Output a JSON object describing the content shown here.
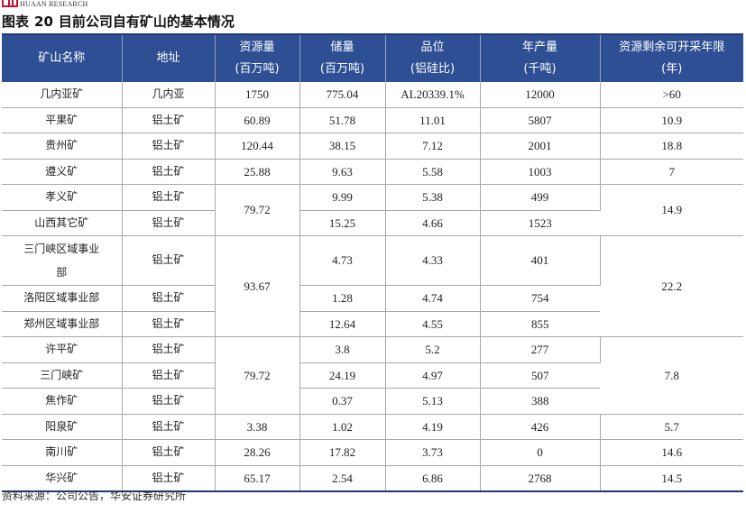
{
  "header": {
    "brand": "HUAAN RESEARCH",
    "figure_label": "图表",
    "figure_number": "20",
    "figure_title": "目前公司自有矿山的基本情况"
  },
  "table": {
    "columns": [
      {
        "line1": "矿山名称",
        "line2": ""
      },
      {
        "line1": "地址",
        "line2": ""
      },
      {
        "line1": "资源量",
        "line2": "(百万吨)"
      },
      {
        "line1": "储量",
        "line2": "(百万吨)"
      },
      {
        "line1": "品位",
        "line2": "(铝硅比)"
      },
      {
        "line1": "年产量",
        "line2": "(千吨)"
      },
      {
        "line1": "资源剩余可开采年限",
        "line2": "(年)"
      }
    ],
    "rows": [
      {
        "name": "几内亚矿",
        "addr": "几内亚",
        "resource": "1750",
        "reserve": "775.04",
        "grade": "AL20339.1%",
        "output": "12000",
        "years": ">60"
      },
      {
        "name": "平果矿",
        "addr": "铝土矿",
        "resource": "60.89",
        "reserve": "51.78",
        "grade": "11.01",
        "output": "5807",
        "years": "10.9"
      },
      {
        "name": "贵州矿",
        "addr": "铝土矿",
        "resource": "120.44",
        "reserve": "38.15",
        "grade": "7.12",
        "output": "2001",
        "years": "18.8"
      },
      {
        "name": "遵义矿",
        "addr": "铝土矿",
        "resource": "25.88",
        "reserve": "9.63",
        "grade": "5.58",
        "output": "1003",
        "years": "7"
      },
      {
        "name": "孝义矿",
        "addr": "铝土矿",
        "resource": "79.72",
        "reserve": "9.99",
        "grade": "5.38",
        "output": "499",
        "years": "14.9"
      },
      {
        "name": "山西其它矿",
        "addr": "铝土矿",
        "resource": "",
        "reserve": "15.25",
        "grade": "4.66",
        "output": "1523",
        "years": ""
      },
      {
        "name_line1": "三门峡区域事业",
        "name_line2": "部",
        "addr": "铝土矿",
        "resource": "93.67",
        "reserve": "4.73",
        "grade": "4.33",
        "output": "401",
        "years": "22.2"
      },
      {
        "name": "洛阳区域事业部",
        "addr": "铝土矿",
        "resource": "",
        "reserve": "1.28",
        "grade": "4.74",
        "output": "754",
        "years": ""
      },
      {
        "name": "郑州区域事业部",
        "addr": "铝土矿",
        "resource": "",
        "reserve": "12.64",
        "grade": "4.55",
        "output": "855",
        "years": ""
      },
      {
        "name": "许平矿",
        "addr": "铝土矿",
        "resource": "79.72",
        "reserve": "3.8",
        "grade": "5.2",
        "output": "277",
        "years": "7.8"
      },
      {
        "name": "三门峡矿",
        "addr": "铝土矿",
        "resource": "",
        "reserve": "24.19",
        "grade": "4.97",
        "output": "507",
        "years": ""
      },
      {
        "name": "焦作矿",
        "addr": "铝土矿",
        "resource": "",
        "reserve": "0.37",
        "grade": "5.13",
        "output": "388",
        "years": ""
      },
      {
        "name": "阳泉矿",
        "addr": "铝土矿",
        "resource": "3.38",
        "reserve": "1.02",
        "grade": "4.19",
        "output": "426",
        "years": "5.7"
      },
      {
        "name": "南川矿",
        "addr": "铝土矿",
        "resource": "28.26",
        "reserve": "17.82",
        "grade": "3.73",
        "output": "0",
        "years": "14.6"
      },
      {
        "name": "华兴矿",
        "addr": "铝土矿",
        "resource": "65.17",
        "reserve": "2.54",
        "grade": "6.86",
        "output": "2768",
        "years": "14.5"
      }
    ]
  },
  "source": "资料来源：公司公告，华安证券研究所",
  "colors": {
    "header_bg": "#2e4f94",
    "brand_red": "#c8102e"
  }
}
